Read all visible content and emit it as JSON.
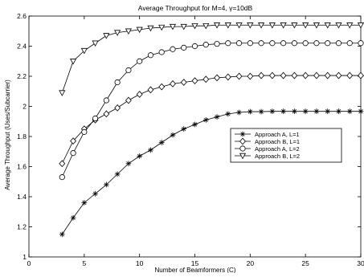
{
  "chart_data": {
    "type": "line",
    "title": "Average Throughput for M=4, γ=10dB",
    "xlabel": "Number of Beamformers (C)",
    "ylabel": "Average Throughput (Uses/Subcarrier)",
    "xlim": [
      0,
      30
    ],
    "ylim": [
      1,
      2.6
    ],
    "xticks": [
      0,
      5,
      10,
      15,
      20,
      25,
      30
    ],
    "yticks": [
      1,
      1.2,
      1.4,
      1.6,
      1.8,
      2,
      2.2,
      2.4,
      2.6
    ],
    "grid": false,
    "legend_position": "center-right",
    "x": [
      3,
      4,
      5,
      6,
      7,
      8,
      9,
      10,
      11,
      12,
      13,
      14,
      15,
      16,
      17,
      18,
      19,
      20,
      21,
      22,
      23,
      24,
      25,
      26,
      27,
      28,
      29,
      30
    ],
    "series": [
      {
        "name": "Approach A, L=1",
        "marker": "asterisk",
        "values": [
          1.15,
          1.26,
          1.36,
          1.42,
          1.48,
          1.55,
          1.62,
          1.67,
          1.71,
          1.76,
          1.81,
          1.85,
          1.88,
          1.91,
          1.93,
          1.95,
          1.96,
          1.965,
          1.965,
          1.967,
          1.967,
          1.967,
          1.967,
          1.967,
          1.967,
          1.967,
          1.967,
          1.967
        ]
      },
      {
        "name": "Approach B, L=1",
        "marker": "diamond",
        "values": [
          1.62,
          1.77,
          1.85,
          1.91,
          1.95,
          1.99,
          2.04,
          2.08,
          2.11,
          2.13,
          2.15,
          2.16,
          2.17,
          2.18,
          2.19,
          2.195,
          2.2,
          2.2,
          2.205,
          2.205,
          2.205,
          2.205,
          2.205,
          2.205,
          2.205,
          2.205,
          2.205,
          2.205
        ]
      },
      {
        "name": "Approach A, L=2",
        "marker": "circle",
        "values": [
          1.53,
          1.69,
          1.83,
          1.92,
          2.04,
          2.16,
          2.24,
          2.3,
          2.34,
          2.36,
          2.38,
          2.39,
          2.4,
          2.41,
          2.415,
          2.42,
          2.42,
          2.42,
          2.42,
          2.42,
          2.42,
          2.42,
          2.42,
          2.42,
          2.42,
          2.42,
          2.42,
          2.42
        ]
      },
      {
        "name": "Approach B, L=2",
        "marker": "triangle-down",
        "values": [
          2.09,
          2.3,
          2.37,
          2.42,
          2.47,
          2.49,
          2.5,
          2.51,
          2.52,
          2.525,
          2.53,
          2.53,
          2.535,
          2.535,
          2.54,
          2.54,
          2.54,
          2.54,
          2.54,
          2.54,
          2.54,
          2.54,
          2.54,
          2.54,
          2.54,
          2.54,
          2.54,
          2.54
        ]
      }
    ]
  }
}
